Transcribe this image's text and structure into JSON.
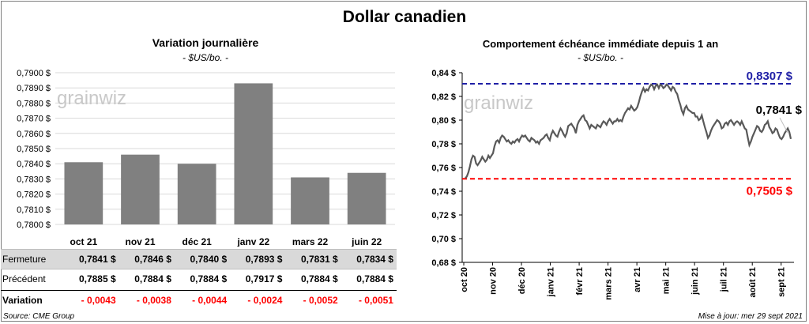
{
  "title": "Dollar canadien",
  "left": {
    "title": "Variation  journalière",
    "unit": "- $US/bo. -",
    "watermark": "grainwiz",
    "y_ticks": [
      "0,7800 $",
      "0,7810 $",
      "0,7820 $",
      "0,7830 $",
      "0,7840 $",
      "0,7850 $",
      "0,7860 $",
      "0,7870 $",
      "0,7880 $",
      "0,7890 $",
      "0,7900 $"
    ]
  },
  "table": {
    "rows": [
      {
        "label": "Fermeture",
        "values": [
          "0,7841  $",
          "0,7846  $",
          "0,7840  $",
          "0,7893  $",
          "0,7831  $",
          "0,7834  $"
        ]
      },
      {
        "label": "Précédent",
        "values": [
          "0,7885  $",
          "0,7884  $",
          "0,7884  $",
          "0,7917  $",
          "0,7884  $",
          "0,7884  $"
        ]
      },
      {
        "label": "Variation",
        "values": [
          "- 0,0043",
          "- 0,0038",
          "- 0,0044",
          "- 0,0024",
          "- 0,0052",
          "- 0,0051"
        ]
      }
    ]
  },
  "right": {
    "title": "Comportement échéance immédiate depuis 1 an",
    "unit": "- $US/bo. -",
    "watermark": "grainwiz",
    "y_ticks": [
      "0,68 $",
      "0,70 $",
      "0,72 $",
      "0,74 $",
      "0,76 $",
      "0,78 $",
      "0,80 $",
      "0,82 $",
      "0,84 $"
    ],
    "x_ticks": [
      "oct 20",
      "nov 20",
      "déc 20",
      "janv 21",
      "févr 21",
      "mars 21",
      "avr 21",
      "mai 21",
      "juin 21",
      "juil 21",
      "août 21",
      "sept 21"
    ],
    "high_label": "0,8307 $",
    "low_label": "0,7505  $",
    "last_label": "0,7841 $"
  },
  "footer": {
    "source": "Source: CME Group",
    "updated": "Mise à jour: mer 29 sept 2021"
  },
  "colors": {
    "bar": "#808080",
    "line": "#595959",
    "high": "#1f1fa6",
    "low": "#ff0000"
  },
  "chart_data": [
    {
      "type": "bar",
      "title": "Variation  journalière",
      "categories": [
        "oct 21",
        "nov 21",
        "déc 21",
        "janv 22",
        "mars 22",
        "juin 22"
      ],
      "values": [
        0.7841,
        0.7846,
        0.784,
        0.7893,
        0.7831,
        0.7834
      ],
      "ylim": [
        0.78,
        0.79
      ],
      "grid": true
    },
    {
      "type": "line",
      "title": "Comportement échéance immédiate depuis 1 an",
      "x_start": "2020-09-30",
      "x_end": "2021-09-29",
      "ylim": [
        0.68,
        0.84
      ],
      "values": [
        0.751,
        0.7525,
        0.756,
        0.761,
        0.767,
        0.77,
        0.769,
        0.7635,
        0.762,
        0.764,
        0.766,
        0.769,
        0.767,
        0.765,
        0.7665,
        0.77,
        0.768,
        0.77,
        0.772,
        0.778,
        0.782,
        0.783,
        0.781,
        0.785,
        0.787,
        0.786,
        0.784,
        0.782,
        0.783,
        0.781,
        0.78,
        0.782,
        0.781,
        0.783,
        0.784,
        0.782,
        0.785,
        0.787,
        0.786,
        0.787,
        0.785,
        0.783,
        0.782,
        0.785,
        0.784,
        0.783,
        0.781,
        0.782,
        0.78,
        0.783,
        0.784,
        0.785,
        0.787,
        0.788,
        0.785,
        0.783,
        0.788,
        0.791,
        0.789,
        0.787,
        0.786,
        0.79,
        0.793,
        0.791,
        0.788,
        0.786,
        0.789,
        0.795,
        0.796,
        0.797,
        0.795,
        0.793,
        0.789,
        0.796,
        0.799,
        0.801,
        0.803,
        0.804,
        0.8,
        0.799,
        0.796,
        0.793,
        0.796,
        0.795,
        0.794,
        0.793,
        0.796,
        0.795,
        0.794,
        0.797,
        0.799,
        0.798,
        0.796,
        0.799,
        0.801,
        0.799,
        0.797,
        0.799,
        0.799,
        0.801,
        0.799,
        0.8,
        0.799,
        0.803,
        0.806,
        0.808,
        0.81,
        0.809,
        0.812,
        0.81,
        0.808,
        0.809,
        0.811,
        0.815,
        0.82,
        0.824,
        0.827,
        0.824,
        0.826,
        0.825,
        0.828,
        0.83,
        0.829,
        0.826,
        0.829,
        0.83,
        0.827,
        0.83,
        0.829,
        0.827,
        0.828,
        0.83,
        0.829,
        0.827,
        0.825,
        0.828,
        0.827,
        0.824,
        0.822,
        0.817,
        0.813,
        0.808,
        0.805,
        0.81,
        0.812,
        0.809,
        0.808,
        0.807,
        0.806,
        0.806,
        0.803,
        0.803,
        0.8,
        0.801,
        0.804,
        0.799,
        0.794,
        0.79,
        0.785,
        0.787,
        0.791,
        0.794,
        0.796,
        0.798,
        0.8,
        0.799,
        0.797,
        0.793,
        0.794,
        0.797,
        0.798,
        0.796,
        0.799,
        0.8,
        0.798,
        0.796,
        0.798,
        0.799,
        0.798,
        0.796,
        0.799,
        0.796,
        0.793,
        0.792,
        0.785,
        0.779,
        0.782,
        0.786,
        0.789,
        0.792,
        0.795,
        0.794,
        0.791,
        0.79,
        0.792,
        0.796,
        0.797,
        0.799,
        0.794,
        0.792,
        0.789,
        0.79,
        0.793,
        0.792,
        0.788,
        0.785,
        0.784,
        0.786,
        0.789,
        0.791,
        0.793,
        0.79,
        0.7841
      ],
      "reference_lines": [
        {
          "label": "0,8307 $",
          "value": 0.8307
        },
        {
          "label": "0,7505  $",
          "value": 0.7505
        }
      ],
      "grid": false
    }
  ]
}
